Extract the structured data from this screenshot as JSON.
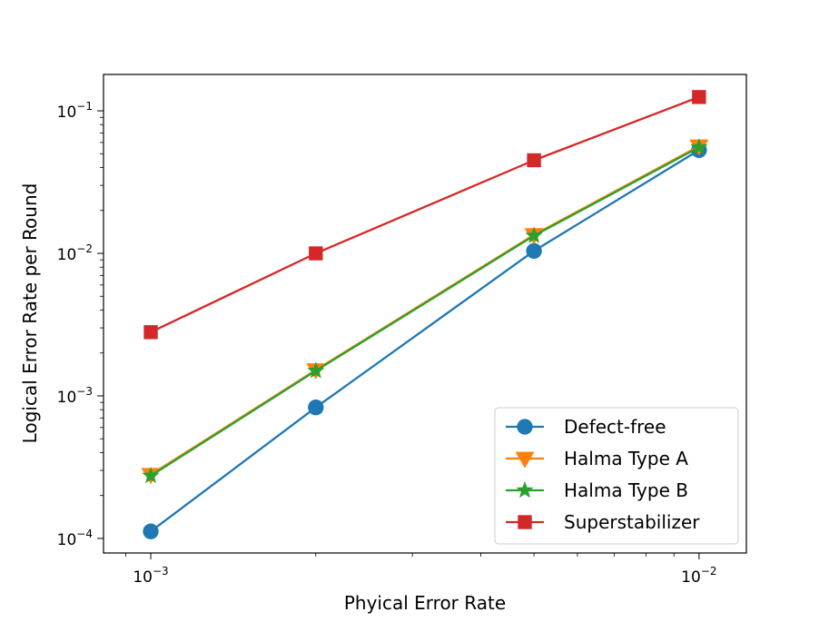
{
  "chart_data": {
    "type": "line",
    "xscale": "log",
    "yscale": "log",
    "xlabel": "Phyical Error Rate",
    "ylabel": "Logical Error Rate per Round",
    "xlim": [
      0.00082,
      0.0122
    ],
    "ylim": [
      7.9e-05,
      0.18
    ],
    "x": [
      0.001,
      0.002,
      0.005,
      0.01
    ],
    "x_ticks": [
      {
        "value": 0.001,
        "base": "10",
        "exp": "−3"
      },
      {
        "value": 0.01,
        "base": "10",
        "exp": "−2"
      }
    ],
    "y_ticks": [
      {
        "value": 0.0001,
        "base": "10",
        "exp": "−4"
      },
      {
        "value": 0.001,
        "base": "10",
        "exp": "−3"
      },
      {
        "value": 0.01,
        "base": "10",
        "exp": "−2"
      },
      {
        "value": 0.1,
        "base": "10",
        "exp": "−1"
      }
    ],
    "legend_position": "lower-right",
    "series": [
      {
        "name": "Defect-free",
        "color": "#1f77b4",
        "marker": "circle",
        "values": [
          0.000112,
          0.00083,
          0.0104,
          0.053
        ]
      },
      {
        "name": "Halma Type A",
        "color": "#ff7f0e",
        "marker": "triangle-down",
        "values": [
          0.00028,
          0.00152,
          0.0135,
          0.0565
        ]
      },
      {
        "name": "Halma Type B",
        "color": "#2ca02c",
        "marker": "star",
        "values": [
          0.000275,
          0.0015,
          0.0133,
          0.0555
        ]
      },
      {
        "name": "Superstabilizer",
        "color": "#d62728",
        "marker": "square",
        "values": [
          0.0028,
          0.01,
          0.045,
          0.125
        ]
      }
    ]
  }
}
